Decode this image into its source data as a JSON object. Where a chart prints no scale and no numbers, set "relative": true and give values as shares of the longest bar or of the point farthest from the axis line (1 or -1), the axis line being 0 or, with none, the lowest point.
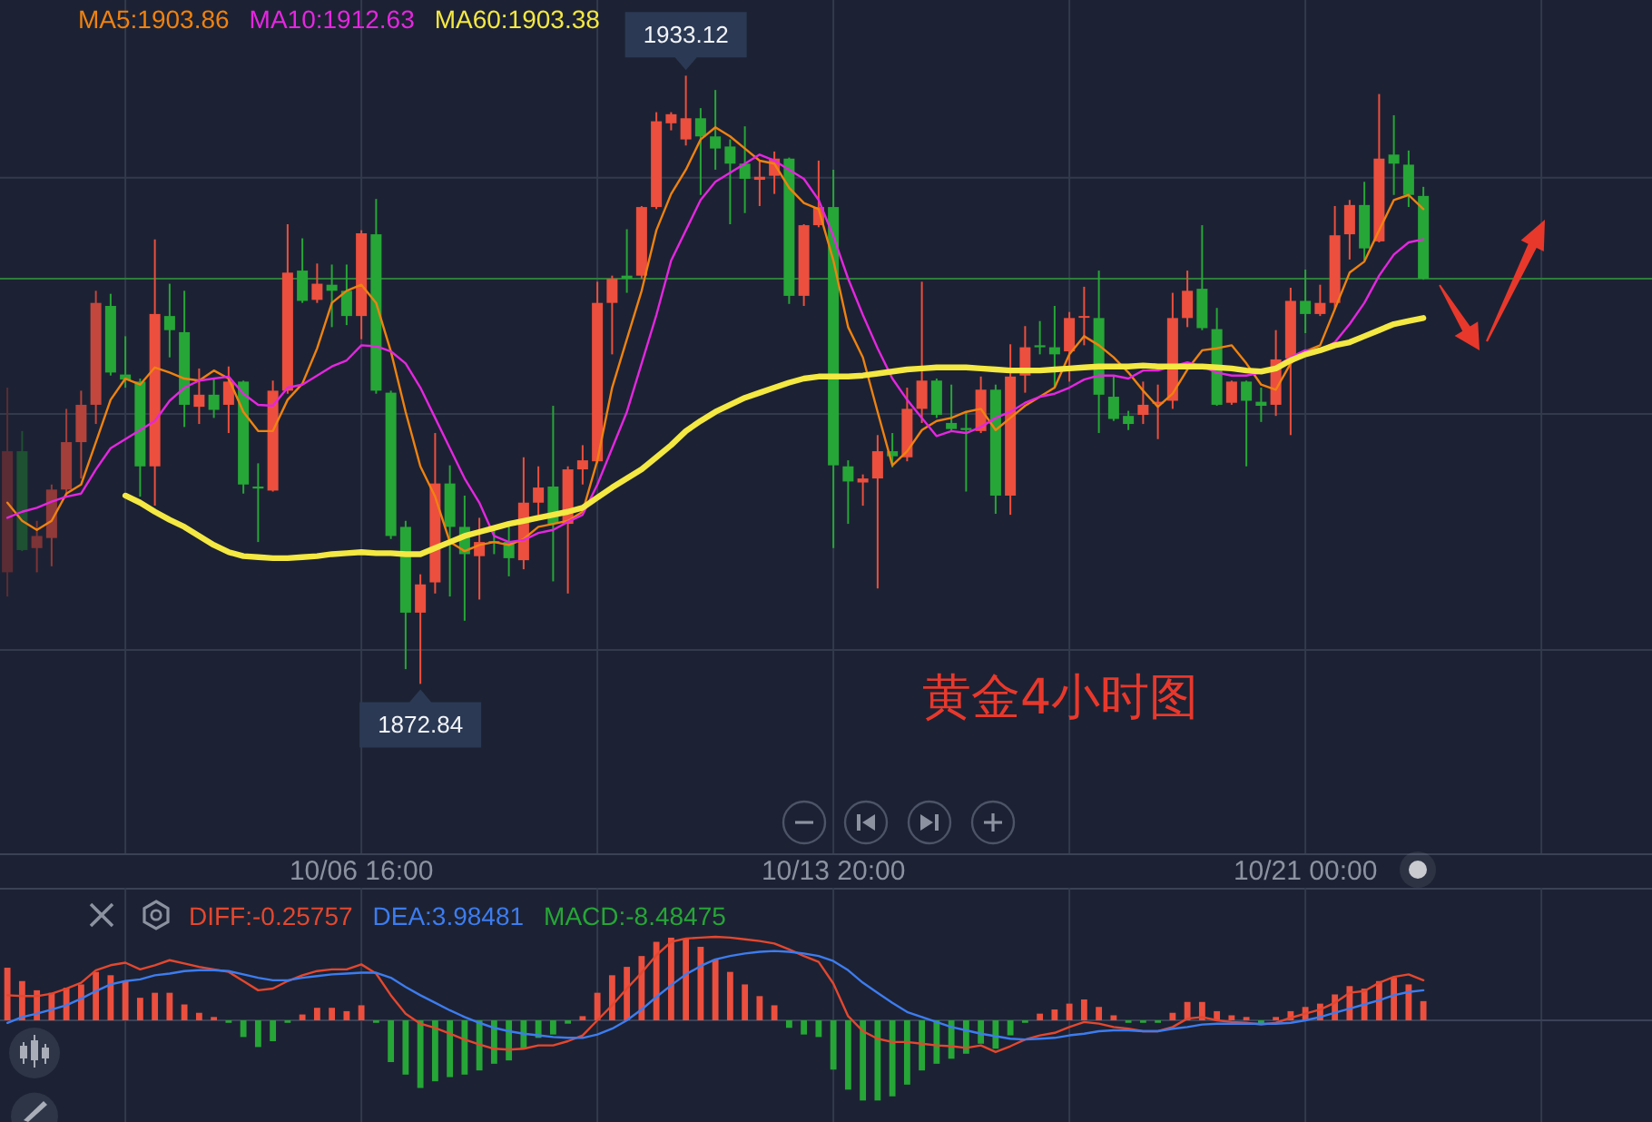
{
  "chart_data": [
    {
      "type": "candlestick",
      "categories": [
        null,
        null,
        null,
        null,
        null,
        null,
        null,
        null,
        null,
        null,
        null,
        null,
        null,
        null,
        null,
        null,
        null,
        null,
        null,
        null,
        null,
        null,
        null,
        null,
        "10/06 16:00",
        null,
        null,
        null,
        null,
        null,
        null,
        null,
        null,
        null,
        null,
        null,
        null,
        null,
        null,
        null,
        null,
        null,
        null,
        null,
        null,
        null,
        null,
        null,
        null,
        null,
        null,
        null,
        null,
        null,
        null,
        null,
        "10/13 20:00",
        null,
        null,
        null,
        null,
        null,
        null,
        null,
        null,
        null,
        null,
        null,
        null,
        null,
        null,
        null,
        null,
        null,
        null,
        null,
        null,
        null,
        null,
        null,
        null,
        null,
        null,
        null,
        null,
        null,
        null,
        null,
        "10/21 00:00",
        null,
        null,
        null,
        null,
        null,
        null,
        null,
        null,
        null,
        null,
        null,
        null,
        null,
        null,
        null,
        null,
        null,
        null,
        null,
        null,
        null,
        null,
        null
      ],
      "ohlc": [
        [
          1883.9,
          1902.2,
          1881.5,
          1895.9
        ],
        [
          1895.9,
          1897.9,
          1886.0,
          1886.1
        ],
        [
          1886.3,
          1889.0,
          1883.9,
          1887.5
        ],
        [
          1887.3,
          1892.6,
          1884.5,
          1892.1
        ],
        [
          1892.1,
          1900.1,
          1891.4,
          1896.8
        ],
        [
          1896.8,
          1901.9,
          1893.2,
          1900.5
        ],
        [
          1900.5,
          1911.8,
          1898.6,
          1910.6
        ],
        [
          1910.3,
          1911.5,
          1903.4,
          1903.7
        ],
        [
          1903.5,
          1907.3,
          1902.2,
          1903.0
        ],
        [
          1902.8,
          1903.1,
          1891.4,
          1894.4
        ],
        [
          1894.4,
          1916.9,
          1890.5,
          1909.5
        ],
        [
          1909.3,
          1912.5,
          1905.2,
          1907.9
        ],
        [
          1907.7,
          1911.8,
          1898.3,
          1900.5
        ],
        [
          1900.3,
          1904.1,
          1898.6,
          1901.5
        ],
        [
          1901.5,
          1903.1,
          1899.2,
          1900.0
        ],
        [
          1900.5,
          1904.3,
          1897.7,
          1902.8
        ],
        [
          1902.8,
          1902.9,
          1891.7,
          1892.6
        ],
        [
          1892.4,
          1894.7,
          1886.9,
          1892.2
        ],
        [
          1892.0,
          1902.9,
          1891.9,
          1901.9
        ],
        [
          1901.9,
          1918.4,
          1901.6,
          1913.6
        ],
        [
          1913.8,
          1917.0,
          1910.6,
          1910.8
        ],
        [
          1910.9,
          1914.5,
          1910.6,
          1912.5
        ],
        [
          1912.4,
          1914.4,
          1908.2,
          1911.8
        ],
        [
          1911.8,
          1914.4,
          1908.4,
          1909.3
        ],
        [
          1909.3,
          1917.8,
          1907.0,
          1917.5
        ],
        [
          1917.4,
          1920.9,
          1901.6,
          1901.9
        ],
        [
          1901.7,
          1901.9,
          1887.2,
          1887.5
        ],
        [
          1888.4,
          1889.0,
          1874.3,
          1879.9
        ],
        [
          1879.9,
          1883.7,
          1872.84,
          1882.7
        ],
        [
          1882.9,
          1897.7,
          1881.8,
          1892.7
        ],
        [
          1892.7,
          1894.5,
          1881.5,
          1888.4
        ],
        [
          1888.4,
          1891.5,
          1879.1,
          1885.7
        ],
        [
          1885.5,
          1889.3,
          1881.2,
          1886.9
        ],
        [
          1887.0,
          1888.4,
          1885.7,
          1886.8
        ],
        [
          1886.9,
          1888.5,
          1883.5,
          1885.3
        ],
        [
          1885.1,
          1895.3,
          1884.2,
          1890.8
        ],
        [
          1890.8,
          1894.4,
          1889.6,
          1892.3
        ],
        [
          1892.4,
          1900.4,
          1883.0,
          1888.7
        ],
        [
          1888.7,
          1894.4,
          1881.8,
          1894.1
        ],
        [
          1894.1,
          1896.5,
          1892.6,
          1895.0
        ],
        [
          1894.9,
          1912.7,
          1894.7,
          1910.6
        ],
        [
          1910.6,
          1913.3,
          1905.5,
          1913.0
        ],
        [
          1913.3,
          1917.9,
          1911.6,
          1913.0
        ],
        [
          1913.3,
          1920.2,
          1913.0,
          1920.1
        ],
        [
          1920.1,
          1929.5,
          1919.9,
          1928.6
        ],
        [
          1928.4,
          1929.5,
          1927.7,
          1929.3
        ],
        [
          1926.8,
          1933.12,
          1926.2,
          1928.9
        ],
        [
          1928.9,
          1929.9,
          1921.3,
          1927.1
        ],
        [
          1927.1,
          1931.7,
          1923.8,
          1925.9
        ],
        [
          1926.1,
          1926.8,
          1918.4,
          1924.4
        ],
        [
          1924.4,
          1928.1,
          1919.5,
          1922.9
        ],
        [
          1922.8,
          1924.7,
          1920.2,
          1923.1
        ],
        [
          1923.2,
          1925.6,
          1921.4,
          1924.9
        ],
        [
          1924.9,
          1925.0,
          1910.5,
          1911.3
        ],
        [
          1911.3,
          1918.4,
          1910.3,
          1918.3
        ],
        [
          1918.3,
          1924.7,
          1918.1,
          1920.1
        ],
        [
          1920.1,
          1923.8,
          1886.3,
          1894.5
        ],
        [
          1894.4,
          1895.0,
          1888.7,
          1892.9
        ],
        [
          1892.8,
          1893.6,
          1890.5,
          1893.2
        ],
        [
          1893.2,
          1897.5,
          1882.3,
          1895.9
        ],
        [
          1895.9,
          1897.7,
          1894.3,
          1895.4
        ],
        [
          1895.3,
          1902.2,
          1894.9,
          1900.1
        ],
        [
          1900.1,
          1912.7,
          1898.7,
          1902.9
        ],
        [
          1902.9,
          1903.1,
          1899.2,
          1899.5
        ],
        [
          1898.7,
          1902.5,
          1897.9,
          1898.1
        ],
        [
          1898.2,
          1899.8,
          1891.9,
          1898.0
        ],
        [
          1897.9,
          1903.3,
          1897.7,
          1902.0
        ],
        [
          1902.0,
          1902.5,
          1889.7,
          1891.5
        ],
        [
          1891.5,
          1906.5,
          1889.6,
          1903.3
        ],
        [
          1903.4,
          1908.3,
          1901.7,
          1906.2
        ],
        [
          1906.4,
          1908.8,
          1905.5,
          1906.2
        ],
        [
          1906.2,
          1910.3,
          1902.2,
          1905.5
        ],
        [
          1905.8,
          1909.7,
          1902.8,
          1909.1
        ],
        [
          1909.2,
          1912.2,
          1906.4,
          1909.3
        ],
        [
          1909.1,
          1913.8,
          1897.7,
          1901.5
        ],
        [
          1901.3,
          1903.4,
          1898.9,
          1899.1
        ],
        [
          1899.4,
          1899.9,
          1898.0,
          1898.6
        ],
        [
          1899.5,
          1902.8,
          1898.6,
          1900.5
        ],
        [
          1900.6,
          1902.5,
          1897.1,
          1900.8
        ],
        [
          1900.9,
          1911.6,
          1900.1,
          1909.1
        ],
        [
          1909.1,
          1913.8,
          1908.2,
          1911.8
        ],
        [
          1912.0,
          1918.3,
          1907.9,
          1908.1
        ],
        [
          1908.0,
          1910.1,
          1900.4,
          1900.5
        ],
        [
          1900.7,
          1902.9,
          1900.5,
          1902.8
        ],
        [
          1902.8,
          1902.9,
          1894.4,
          1900.9
        ],
        [
          1900.8,
          1902.2,
          1898.8,
          1900.4
        ],
        [
          1900.5,
          1907.9,
          1899.4,
          1905.0
        ],
        [
          1905.1,
          1912.1,
          1897.5,
          1910.8
        ],
        [
          1910.8,
          1913.9,
          1907.6,
          1909.5
        ],
        [
          1909.5,
          1912.4,
          1909.3,
          1910.6
        ],
        [
          1910.6,
          1920.2,
          1910.0,
          1917.3
        ],
        [
          1917.4,
          1920.8,
          1914.9,
          1920.3
        ],
        [
          1920.3,
          1922.6,
          1914.8,
          1916.0
        ],
        [
          1916.7,
          1931.3,
          1916.6,
          1924.9
        ],
        [
          1925.3,
          1929.2,
          1921.3,
          1924.4
        ],
        [
          1924.3,
          1925.7,
          1920.1,
          1921.3
        ],
        [
          1921.2,
          1922.1,
          1912.9,
          1913.0
        ],
        null,
        null,
        null,
        null,
        null,
        null,
        null,
        null,
        null,
        null,
        null,
        null,
        null,
        null,
        null
      ],
      "colors": [
        "#5c2c35",
        "#1e5032",
        "#7c3437",
        "#903a39",
        "#a33f3b",
        "#b4433c",
        "#c4473d",
        "#26a637",
        "#26a637",
        "#26a637",
        "#ec4f3e",
        "#26a637",
        "#26a637",
        "#ec4f3e",
        "#26a637",
        "#ec4f3e",
        "#26a637",
        "#26a637",
        "#ec4f3e",
        "#ec4f3e",
        "#26a637",
        "#ec4f3e",
        "#26a637",
        "#26a637",
        "#ec4f3e",
        "#26a637",
        "#26a637",
        "#26a637",
        "#ec4f3e",
        "#ec4f3e",
        "#26a637",
        "#26a637",
        "#ec4f3e",
        "#26a637",
        "#26a637",
        "#ec4f3e",
        "#ec4f3e",
        "#26a637",
        "#ec4f3e",
        "#ec4f3e",
        "#ec4f3e",
        "#ec4f3e",
        "#26a637",
        "#ec4f3e",
        "#ec4f3e",
        "#ec4f3e",
        "#ec4f3e",
        "#26a637",
        "#26a637",
        "#26a637",
        "#26a637",
        "#ec4f3e",
        "#ec4f3e",
        "#26a637",
        "#ec4f3e",
        "#ec4f3e",
        "#26a637",
        "#26a637",
        "#ec4f3e",
        "#ec4f3e",
        "#26a637",
        "#ec4f3e",
        "#ec4f3e",
        "#26a637",
        "#26a637",
        "#26a637",
        "#ec4f3e",
        "#26a637",
        "#ec4f3e",
        "#ec4f3e",
        "#26a637",
        "#26a637",
        "#ec4f3e",
        "#ec4f3e",
        "#26a637",
        "#26a637",
        "#26a637",
        "#ec4f3e",
        "#ec4f3e",
        "#ec4f3e",
        "#ec4f3e",
        "#26a637",
        "#26a637",
        "#ec4f3e",
        "#26a637",
        "#26a637",
        "#ec4f3e",
        "#ec4f3e",
        "#26a637",
        "#ec4f3e",
        "#ec4f3e",
        "#ec4f3e",
        "#26a637",
        "#ec4f3e",
        "#26a637",
        "#26a637",
        "#26a637",
        null,
        null,
        null,
        null,
        null,
        null,
        null,
        null,
        null,
        null,
        null,
        null,
        null,
        null,
        null
      ],
      "series": [
        {
          "name": "MA5:1903.86",
          "type": "line",
          "color": "#f0820f",
          "values": [
            1890.8,
            1889.0,
            1888.1,
            1889.0,
            1891.7,
            1892.6,
            1896.8,
            1901.0,
            1903.1,
            1902.5,
            1904.2,
            1903.7,
            1903.1,
            1902.9,
            1903.9,
            1903.1,
            1899.8,
            1897.9,
            1897.9,
            1901.0,
            1902.6,
            1906.1,
            1910.6,
            1911.8,
            1912.4,
            1910.6,
            1905.8,
            1899.8,
            1894.4,
            1891.4,
            1886.9,
            1886.0,
            1886.6,
            1886.9,
            1886.6,
            1887.2,
            1888.4,
            1888.7,
            1889.0,
            1889.9,
            1895.0,
            1902.2,
            1907.0,
            1911.8,
            1917.8,
            1921.4,
            1923.8,
            1926.8,
            1928.0,
            1927.1,
            1925.9,
            1924.7,
            1924.4,
            1922.0,
            1920.5,
            1919.9,
            1914.8,
            1908.2,
            1905.2,
            1899.8,
            1894.5,
            1895.9,
            1898.0,
            1898.9,
            1899.2,
            1899.8,
            1900.1,
            1898.0,
            1899.2,
            1900.4,
            1901.3,
            1902.2,
            1905.5,
            1907.3,
            1906.4,
            1905.2,
            1903.7,
            1901.9,
            1900.3,
            1901.6,
            1904.0,
            1905.9,
            1906.1,
            1906.4,
            1904.6,
            1902.5,
            1902.0,
            1904.6,
            1905.8,
            1906.4,
            1910.0,
            1913.6,
            1914.7,
            1917.8,
            1920.8,
            1921.3,
            1919.9,
            null,
            null,
            null,
            null,
            null,
            null,
            null,
            null,
            null,
            null,
            null,
            null,
            null,
            null,
            null
          ]
        },
        {
          "name": "MA10:1912.63",
          "type": "line",
          "color": "#e526e0",
          "values": [
            1889.3,
            1889.9,
            1890.3,
            1890.9,
            1891.4,
            1891.7,
            1894.1,
            1896.2,
            1897.1,
            1898.0,
            1898.9,
            1900.9,
            1902.2,
            1902.9,
            1903.1,
            1903.3,
            1901.6,
            1900.5,
            1900.4,
            1902.2,
            1902.5,
            1903.4,
            1904.3,
            1904.9,
            1906.4,
            1906.3,
            1905.8,
            1904.6,
            1902.2,
            1899.2,
            1896.2,
            1893.2,
            1890.8,
            1887.5,
            1886.9,
            1887.1,
            1887.8,
            1888.1,
            1888.9,
            1889.6,
            1892.6,
            1896.2,
            1899.8,
            1904.6,
            1909.4,
            1914.8,
            1917.8,
            1920.8,
            1922.6,
            1923.5,
            1924.4,
            1925.3,
            1924.7,
            1923.8,
            1922.9,
            1920.8,
            1917.2,
            1913.0,
            1909.4,
            1906.1,
            1903.1,
            1901.0,
            1899.2,
            1897.4,
            1897.9,
            1897.7,
            1898.3,
            1899.2,
            1899.8,
            1900.7,
            1901.3,
            1901.6,
            1902.2,
            1903.0,
            1903.4,
            1903.4,
            1903.1,
            1903.9,
            1903.9,
            1904.3,
            1904.7,
            1904.3,
            1903.7,
            1903.4,
            1903.4,
            1903.7,
            1904.3,
            1905.2,
            1905.9,
            1905.9,
            1906.7,
            1908.5,
            1910.6,
            1913.3,
            1915.4,
            1916.6,
            1916.9,
            null,
            null,
            null,
            null,
            null,
            null,
            null,
            null,
            null,
            null,
            null,
            null,
            null,
            null,
            null
          ]
        },
        {
          "name": "MA60:1903.38",
          "type": "line",
          "color": "#f4e842",
          "values": [
            null,
            null,
            null,
            null,
            null,
            null,
            null,
            null,
            1891.5,
            1890.8,
            1889.9,
            1889.1,
            1888.4,
            1887.5,
            1886.6,
            1885.9,
            1885.5,
            1885.4,
            1885.3,
            1885.3,
            1885.4,
            1885.5,
            1885.7,
            1885.8,
            1885.9,
            1885.8,
            1885.8,
            1885.7,
            1885.7,
            1886.3,
            1886.9,
            1887.5,
            1887.9,
            1888.3,
            1888.7,
            1889.0,
            1889.3,
            1889.6,
            1889.9,
            1890.3,
            1891.3,
            1892.3,
            1893.2,
            1894.1,
            1895.3,
            1896.5,
            1897.9,
            1898.9,
            1899.8,
            1900.5,
            1901.2,
            1901.7,
            1902.2,
            1902.7,
            1903.1,
            1903.3,
            1903.3,
            1903.3,
            1903.4,
            1903.6,
            1903.8,
            1904.0,
            1904.1,
            1904.2,
            1904.2,
            1904.2,
            1904.1,
            1904.0,
            1903.9,
            1903.9,
            1903.9,
            1904.0,
            1904.1,
            1904.2,
            1904.3,
            1904.3,
            1904.3,
            1904.4,
            1904.3,
            1904.3,
            1904.3,
            1904.3,
            1904.2,
            1904.1,
            1903.9,
            1903.8,
            1904.1,
            1904.9,
            1905.5,
            1905.9,
            1906.4,
            1906.7,
            1907.3,
            1907.9,
            1908.5,
            1908.8,
            1909.1,
            null,
            null,
            null,
            null,
            null,
            null,
            null,
            null,
            null,
            null,
            null,
            null,
            null,
            null,
            null
          ]
        }
      ],
      "ylim": [
        1856.05,
        1940.62
      ],
      "yticks": [
        {
          "value": 1923.0,
          "label": null
        },
        {
          "value": 1899.6,
          "label": null
        },
        {
          "value": 1876.2,
          "label": null
        }
      ],
      "tick_labels": "x",
      "grid": true,
      "legend": "top left",
      "ref_lines": [
        {
          "axis": "y",
          "value": 1913.0,
          "color": "#2d7d3b"
        }
      ],
      "annotations": [
        {
          "text": "1933.12",
          "y": 1933.12
        },
        {
          "text": "1872.84",
          "y": 1872.84
        },
        "黄金4小时图"
      ]
    },
    {
      "type": "bar",
      "relative": true,
      "categories": [
        null,
        null,
        null,
        null,
        null,
        null,
        null,
        null,
        null,
        null,
        null,
        null,
        null,
        null,
        null,
        null,
        null,
        null,
        null,
        null,
        null,
        null,
        null,
        null,
        null,
        null,
        null,
        null,
        null,
        null,
        null,
        null,
        null,
        null,
        null,
        null,
        null,
        null,
        null,
        null,
        null,
        null,
        null,
        null,
        null,
        null,
        null,
        null,
        null,
        null,
        null,
        null,
        null,
        null,
        null,
        null,
        null,
        null,
        null,
        null,
        null,
        null,
        null,
        null,
        null,
        null,
        null,
        null,
        null,
        null,
        null,
        null,
        null,
        null,
        null,
        null,
        null,
        null,
        null,
        null,
        null,
        null,
        null,
        null,
        null,
        null,
        null,
        null,
        null,
        null,
        null,
        null,
        null,
        null,
        null,
        null,
        null,
        null,
        null,
        null,
        null,
        null,
        null,
        null,
        null,
        null,
        null,
        null,
        null,
        null,
        null,
        null
      ],
      "series": [
        {
          "name": "DIFF:-0.25757",
          "type": "line",
          "color": "#e4472f",
          "values": [
            0.3,
            0.29,
            0.29,
            0.32,
            0.38,
            0.45,
            0.6,
            0.66,
            0.69,
            0.61,
            0.66,
            0.72,
            0.68,
            0.64,
            0.61,
            0.58,
            0.47,
            0.36,
            0.38,
            0.47,
            0.54,
            0.59,
            0.61,
            0.61,
            0.67,
            0.56,
            0.3,
            0.08,
            -0.04,
            -0.09,
            -0.16,
            -0.23,
            -0.29,
            -0.34,
            -0.35,
            -0.34,
            -0.3,
            -0.3,
            -0.25,
            -0.18,
            0.0,
            0.18,
            0.38,
            0.57,
            0.78,
            0.94,
            0.98,
            0.99,
            1.0,
            0.99,
            0.97,
            0.95,
            0.92,
            0.85,
            0.77,
            0.7,
            0.44,
            0.05,
            -0.13,
            -0.22,
            -0.26,
            -0.26,
            -0.28,
            -0.3,
            -0.31,
            -0.33,
            -0.3,
            -0.38,
            -0.31,
            -0.23,
            -0.18,
            -0.15,
            -0.08,
            -0.02,
            -0.04,
            -0.08,
            -0.1,
            -0.13,
            -0.13,
            -0.08,
            0.02,
            0.04,
            0.0,
            -0.02,
            -0.03,
            -0.05,
            -0.03,
            0.03,
            0.08,
            0.13,
            0.21,
            0.33,
            0.35,
            0.45,
            0.52,
            0.55,
            0.48,
            null,
            null,
            null,
            null,
            null,
            null,
            null,
            null,
            null,
            null,
            null,
            null,
            null,
            null,
            null
          ]
        },
        {
          "name": "DEA:3.98481",
          "type": "line",
          "color": "#3d7cf0",
          "values": [
            -0.03,
            0.04,
            0.08,
            0.13,
            0.18,
            0.26,
            0.35,
            0.43,
            0.47,
            0.49,
            0.54,
            0.56,
            0.59,
            0.6,
            0.6,
            0.59,
            0.55,
            0.51,
            0.48,
            0.48,
            0.51,
            0.53,
            0.55,
            0.56,
            0.57,
            0.57,
            0.51,
            0.4,
            0.3,
            0.21,
            0.12,
            0.04,
            -0.03,
            -0.09,
            -0.13,
            -0.16,
            -0.18,
            -0.2,
            -0.21,
            -0.21,
            -0.17,
            -0.1,
            0.0,
            0.13,
            0.28,
            0.42,
            0.55,
            0.65,
            0.73,
            0.77,
            0.8,
            0.82,
            0.83,
            0.82,
            0.8,
            0.77,
            0.71,
            0.6,
            0.45,
            0.33,
            0.21,
            0.1,
            0.04,
            -0.02,
            -0.08,
            -0.12,
            -0.16,
            -0.19,
            -0.22,
            -0.23,
            -0.22,
            -0.21,
            -0.18,
            -0.16,
            -0.13,
            -0.12,
            -0.12,
            -0.13,
            -0.13,
            -0.1,
            -0.08,
            -0.05,
            -0.04,
            -0.04,
            -0.04,
            -0.04,
            -0.04,
            -0.03,
            0.0,
            0.04,
            0.09,
            0.14,
            0.19,
            0.24,
            0.3,
            0.34,
            0.36,
            null,
            null,
            null,
            null,
            null,
            null,
            null,
            null,
            null,
            null,
            null,
            null,
            null,
            null,
            null
          ]
        },
        {
          "name": "MACD:-8.48475",
          "type": "bar",
          "color": "#26a637",
          "values": [
            0.63,
            0.47,
            0.36,
            0.33,
            0.39,
            0.43,
            0.58,
            0.54,
            0.47,
            0.27,
            0.33,
            0.33,
            0.19,
            0.09,
            0.04,
            -0.03,
            -0.2,
            -0.32,
            -0.25,
            -0.03,
            0.07,
            0.15,
            0.15,
            0.11,
            0.18,
            -0.03,
            -0.5,
            -0.65,
            -0.81,
            -0.73,
            -0.68,
            -0.65,
            -0.6,
            -0.52,
            -0.48,
            -0.34,
            -0.21,
            -0.17,
            -0.04,
            0.05,
            0.33,
            0.54,
            0.64,
            0.77,
            0.94,
            0.99,
            0.98,
            0.88,
            0.73,
            0.58,
            0.43,
            0.29,
            0.18,
            -0.09,
            -0.17,
            -0.2,
            -0.59,
            -0.83,
            -0.96,
            -0.96,
            -0.91,
            -0.77,
            -0.6,
            -0.52,
            -0.46,
            -0.4,
            -0.28,
            -0.34,
            -0.18,
            -0.03,
            0.08,
            0.13,
            0.2,
            0.25,
            0.16,
            0.06,
            -0.03,
            -0.03,
            -0.03,
            0.09,
            0.22,
            0.22,
            0.11,
            0.06,
            0.04,
            -0.04,
            0.04,
            0.11,
            0.16,
            0.2,
            0.31,
            0.41,
            0.38,
            0.47,
            0.51,
            0.43,
            0.23,
            null,
            null,
            null,
            null,
            null,
            null,
            null,
            null,
            null,
            null,
            null,
            null,
            null,
            null,
            null
          ],
          "colors": [
            "#ec4f3e",
            "#ec4f3e",
            "#ec4f3e",
            "#ec4f3e",
            "#ec4f3e",
            "#ec4f3e",
            "#ec4f3e",
            "#ec4f3e",
            "#ec4f3e",
            "#ec4f3e",
            "#ec4f3e",
            "#ec4f3e",
            "#ec4f3e",
            "#ec4f3e",
            "#ec4f3e",
            "#26a637",
            "#26a637",
            "#26a637",
            "#26a637",
            "#26a637",
            "#ec4f3e",
            "#ec4f3e",
            "#ec4f3e",
            "#ec4f3e",
            "#ec4f3e",
            "#26a637",
            "#26a637",
            "#26a637",
            "#26a637",
            "#26a637",
            "#26a637",
            "#26a637",
            "#26a637",
            "#26a637",
            "#26a637",
            "#26a637",
            "#26a637",
            "#26a637",
            "#26a637",
            "#ec4f3e",
            "#ec4f3e",
            "#ec4f3e",
            "#ec4f3e",
            "#ec4f3e",
            "#ec4f3e",
            "#ec4f3e",
            "#ec4f3e",
            "#ec4f3e",
            "#ec4f3e",
            "#ec4f3e",
            "#ec4f3e",
            "#ec4f3e",
            "#ec4f3e",
            "#26a637",
            "#26a637",
            "#26a637",
            "#26a637",
            "#26a637",
            "#26a637",
            "#26a637",
            "#26a637",
            "#26a637",
            "#26a637",
            "#26a637",
            "#26a637",
            "#26a637",
            "#26a637",
            "#26a637",
            "#26a637",
            "#26a637",
            "#ec4f3e",
            "#ec4f3e",
            "#ec4f3e",
            "#ec4f3e",
            "#ec4f3e",
            "#ec4f3e",
            "#26a637",
            "#26a637",
            "#26a637",
            "#ec4f3e",
            "#ec4f3e",
            "#ec4f3e",
            "#ec4f3e",
            "#ec4f3e",
            "#ec4f3e",
            "#26a637",
            "#ec4f3e",
            "#ec4f3e",
            "#ec4f3e",
            "#ec4f3e",
            "#ec4f3e",
            "#ec4f3e",
            "#ec4f3e",
            "#ec4f3e",
            "#ec4f3e",
            "#ec4f3e",
            "#ec4f3e",
            null,
            null,
            null,
            null,
            null,
            null,
            null,
            null,
            null,
            null,
            null,
            null,
            null,
            null,
            null
          ]
        }
      ],
      "grid": "x",
      "legend": "top left"
    }
  ]
}
